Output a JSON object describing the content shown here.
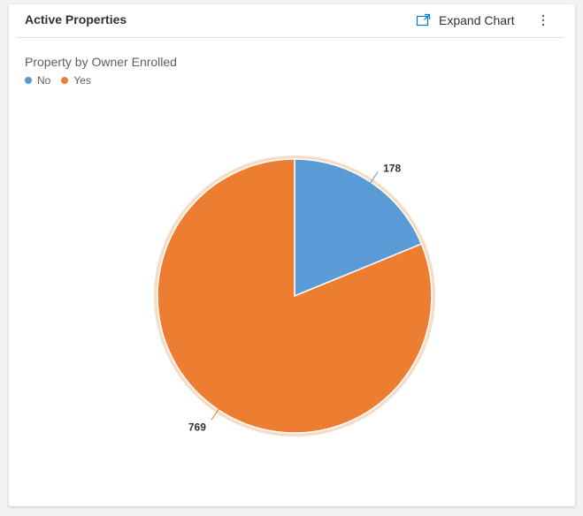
{
  "card": {
    "title": "Active Properties",
    "expand_label": "Expand Chart",
    "more_icon": "more-vertical-icon",
    "expand_icon": "expand-chart-icon"
  },
  "chart_data": {
    "type": "pie",
    "title": "Property by Owner Enrolled",
    "categories": [
      "No",
      "Yes"
    ],
    "values": [
      178,
      769
    ],
    "colors": [
      "#5b9bd5",
      "#ed7d31"
    ],
    "legend_position": "top-left",
    "data_labels": [
      "178",
      "769"
    ]
  }
}
